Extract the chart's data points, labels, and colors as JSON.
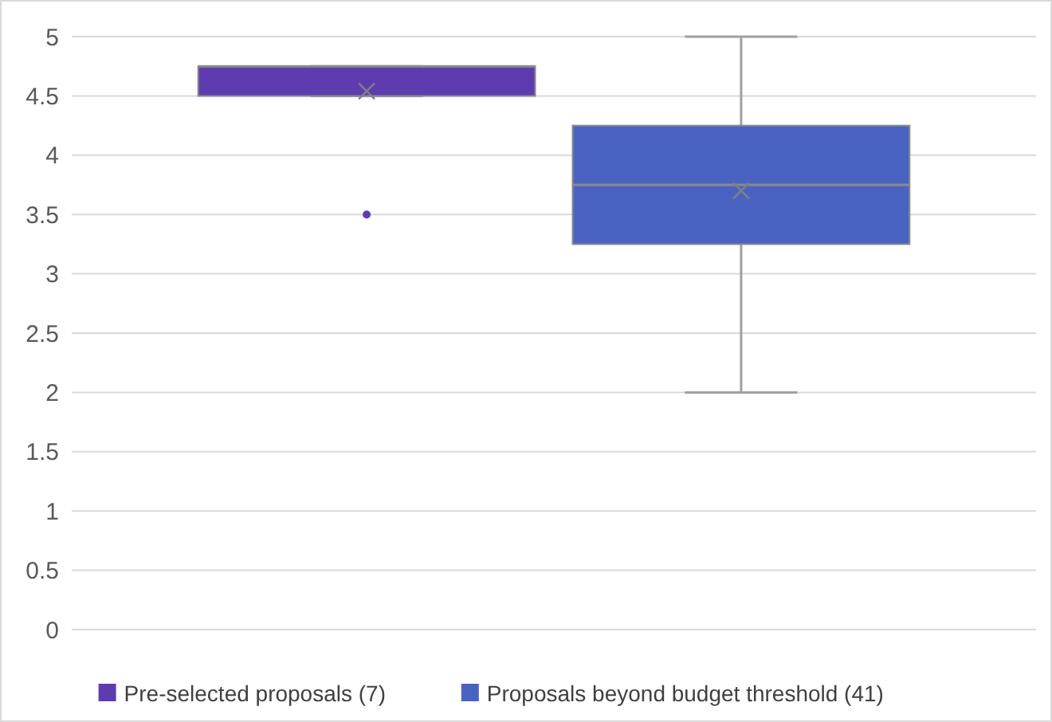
{
  "chart_data": {
    "type": "box",
    "categories": [
      null
    ],
    "series": [
      {
        "name": "Pre-selected proposals (7)",
        "color": "#5e3cb0",
        "boxes": [
          {
            "low": 4.5,
            "q1": 4.5,
            "median": 4.75,
            "q3": 4.75,
            "high": 4.75,
            "mean": 4.54,
            "outliers": [
              3.5
            ]
          }
        ]
      },
      {
        "name": "Proposals beyond budget threshold (41)",
        "color": "#4a63c2",
        "boxes": [
          {
            "low": 2,
            "q1": 3.25,
            "median": 3.75,
            "q3": 4.25,
            "high": 5,
            "mean": 3.7
          }
        ]
      }
    ],
    "ylim": [
      0,
      5
    ],
    "yticks": [
      0,
      0.5,
      1,
      1.5,
      2,
      2.5,
      3,
      3.5,
      4,
      4.5,
      5
    ],
    "grid": "y",
    "legend": "bottom"
  }
}
